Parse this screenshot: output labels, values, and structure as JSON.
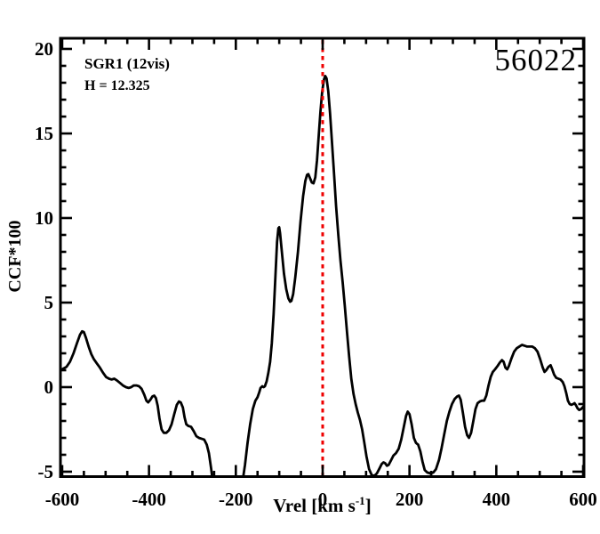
{
  "figure": {
    "annotations": {
      "target": "SGR1 (12vis)",
      "height": "H = 12.325",
      "epoch": "56022"
    },
    "x_axis_title": {
      "prefix": "Vrel [km s",
      "sup": "-1",
      "suffix": "]"
    },
    "y_axis_title": "CCF*100"
  },
  "colors": {
    "background": "#ffffff",
    "curve": "#000000",
    "frame": "#000000",
    "ref_line": "#ee0000"
  },
  "chart_data": {
    "type": "line",
    "title": "",
    "xlabel": "Vrel [km s^-1]",
    "ylabel": "CCF*100",
    "annotations": [
      "SGR1 (12vis)",
      "H = 12.325",
      "56022"
    ],
    "grid": false,
    "legend": "none",
    "xlim": [
      -604,
      602
    ],
    "ylim": [
      -5.29,
      20.63
    ],
    "x_major_ticks": [
      -600,
      -400,
      -200,
      0,
      200,
      400,
      600
    ],
    "x_minor_step": 50,
    "y_major_ticks": [
      -5,
      0,
      5,
      10,
      15,
      20
    ],
    "y_minor_step": 1,
    "ref_line": {
      "x": 0,
      "color": "#ee0000",
      "style": "dotted"
    },
    "series": [
      {
        "name": "CCF",
        "color": "#000000",
        "points": [
          [
            -604,
            1.0
          ],
          [
            -597,
            1.1
          ],
          [
            -590,
            1.2
          ],
          [
            -582,
            1.5
          ],
          [
            -574,
            2.0
          ],
          [
            -566,
            2.6
          ],
          [
            -559,
            3.1
          ],
          [
            -554,
            3.3
          ],
          [
            -550,
            3.25
          ],
          [
            -545,
            2.9
          ],
          [
            -539,
            2.4
          ],
          [
            -533,
            1.95
          ],
          [
            -527,
            1.65
          ],
          [
            -520,
            1.4
          ],
          [
            -513,
            1.15
          ],
          [
            -506,
            0.85
          ],
          [
            -499,
            0.6
          ],
          [
            -492,
            0.5
          ],
          [
            -486,
            0.45
          ],
          [
            -480,
            0.5
          ],
          [
            -474,
            0.4
          ],
          [
            -467,
            0.25
          ],
          [
            -460,
            0.1
          ],
          [
            -453,
            0.0
          ],
          [
            -447,
            -0.05
          ],
          [
            -441,
            0.0
          ],
          [
            -435,
            0.1
          ],
          [
            -429,
            0.1
          ],
          [
            -423,
            0.05
          ],
          [
            -417,
            -0.1
          ],
          [
            -411,
            -0.45
          ],
          [
            -406,
            -0.8
          ],
          [
            -402,
            -0.9
          ],
          [
            -397,
            -0.75
          ],
          [
            -392,
            -0.55
          ],
          [
            -388,
            -0.5
          ],
          [
            -384,
            -0.65
          ],
          [
            -380,
            -1.1
          ],
          [
            -376,
            -1.85
          ],
          [
            -371,
            -2.5
          ],
          [
            -366,
            -2.7
          ],
          [
            -360,
            -2.7
          ],
          [
            -354,
            -2.55
          ],
          [
            -348,
            -2.2
          ],
          [
            -342,
            -1.6
          ],
          [
            -336,
            -1.05
          ],
          [
            -331,
            -0.85
          ],
          [
            -327,
            -0.9
          ],
          [
            -322,
            -1.2
          ],
          [
            -318,
            -1.8
          ],
          [
            -314,
            -2.2
          ],
          [
            -309,
            -2.3
          ],
          [
            -303,
            -2.35
          ],
          [
            -297,
            -2.6
          ],
          [
            -291,
            -2.9
          ],
          [
            -285,
            -3.0
          ],
          [
            -279,
            -3.05
          ],
          [
            -273,
            -3.1
          ],
          [
            -267,
            -3.4
          ],
          [
            -262,
            -3.9
          ],
          [
            -257,
            -4.8
          ],
          [
            -252,
            -5.8
          ],
          [
            -246,
            -6.6
          ],
          [
            -240,
            -7.0
          ],
          [
            -200,
            -7.0
          ],
          [
            -190,
            -6.3
          ],
          [
            -184,
            -5.5
          ],
          [
            -179,
            -4.6
          ],
          [
            -173,
            -3.3
          ],
          [
            -167,
            -2.2
          ],
          [
            -161,
            -1.3
          ],
          [
            -155,
            -0.8
          ],
          [
            -150,
            -0.6
          ],
          [
            -146,
            -0.3
          ],
          [
            -143,
            -0.05
          ],
          [
            -139,
            0.05
          ],
          [
            -136,
            0.0
          ],
          [
            -133,
            0.05
          ],
          [
            -129,
            0.35
          ],
          [
            -125,
            0.85
          ],
          [
            -121,
            1.5
          ],
          [
            -117,
            2.6
          ],
          [
            -113,
            4.3
          ],
          [
            -109,
            6.5
          ],
          [
            -105,
            8.6
          ],
          [
            -102,
            9.4
          ],
          [
            -100,
            9.45
          ],
          [
            -98,
            9.1
          ],
          [
            -94,
            8.0
          ],
          [
            -89,
            6.7
          ],
          [
            -84,
            5.8
          ],
          [
            -79,
            5.25
          ],
          [
            -75,
            5.05
          ],
          [
            -72,
            5.1
          ],
          [
            -68,
            5.5
          ],
          [
            -63,
            6.5
          ],
          [
            -57,
            8.0
          ],
          [
            -51,
            9.8
          ],
          [
            -45,
            11.3
          ],
          [
            -40,
            12.2
          ],
          [
            -36,
            12.55
          ],
          [
            -33,
            12.6
          ],
          [
            -29,
            12.35
          ],
          [
            -25,
            12.1
          ],
          [
            -21,
            12.05
          ],
          [
            -17,
            12.4
          ],
          [
            -13,
            13.4
          ],
          [
            -9,
            14.9
          ],
          [
            -5,
            16.3
          ],
          [
            -1,
            17.5
          ],
          [
            3,
            18.2
          ],
          [
            6,
            18.4
          ],
          [
            9,
            18.25
          ],
          [
            13,
            17.5
          ],
          [
            17,
            16.2
          ],
          [
            21,
            14.7
          ],
          [
            26,
            12.7
          ],
          [
            31,
            10.7
          ],
          [
            36,
            9.0
          ],
          [
            41,
            7.5
          ],
          [
            46,
            6.2
          ],
          [
            51,
            4.8
          ],
          [
            56,
            3.3
          ],
          [
            61,
            1.8
          ],
          [
            66,
            0.5
          ],
          [
            71,
            -0.4
          ],
          [
            76,
            -1.0
          ],
          [
            81,
            -1.5
          ],
          [
            86,
            -1.95
          ],
          [
            91,
            -2.5
          ],
          [
            96,
            -3.3
          ],
          [
            101,
            -4.1
          ],
          [
            107,
            -4.85
          ],
          [
            113,
            -5.2
          ],
          [
            119,
            -5.25
          ],
          [
            125,
            -5.1
          ],
          [
            131,
            -4.8
          ],
          [
            136,
            -4.55
          ],
          [
            140,
            -4.45
          ],
          [
            144,
            -4.5
          ],
          [
            148,
            -4.65
          ],
          [
            152,
            -4.6
          ],
          [
            157,
            -4.35
          ],
          [
            163,
            -4.05
          ],
          [
            169,
            -3.9
          ],
          [
            175,
            -3.65
          ],
          [
            181,
            -3.1
          ],
          [
            187,
            -2.35
          ],
          [
            192,
            -1.7
          ],
          [
            196,
            -1.45
          ],
          [
            200,
            -1.6
          ],
          [
            205,
            -2.2
          ],
          [
            210,
            -3.0
          ],
          [
            215,
            -3.3
          ],
          [
            220,
            -3.4
          ],
          [
            225,
            -3.8
          ],
          [
            230,
            -4.4
          ],
          [
            235,
            -4.9
          ],
          [
            241,
            -5.05
          ],
          [
            248,
            -5.1
          ],
          [
            255,
            -5.05
          ],
          [
            261,
            -4.85
          ],
          [
            268,
            -4.3
          ],
          [
            274,
            -3.6
          ],
          [
            280,
            -2.8
          ],
          [
            286,
            -2.0
          ],
          [
            292,
            -1.45
          ],
          [
            298,
            -1.0
          ],
          [
            304,
            -0.7
          ],
          [
            310,
            -0.55
          ],
          [
            314,
            -0.5
          ],
          [
            318,
            -0.75
          ],
          [
            323,
            -1.5
          ],
          [
            328,
            -2.35
          ],
          [
            333,
            -2.85
          ],
          [
            337,
            -3.0
          ],
          [
            342,
            -2.7
          ],
          [
            347,
            -2.0
          ],
          [
            352,
            -1.3
          ],
          [
            357,
            -0.95
          ],
          [
            362,
            -0.85
          ],
          [
            367,
            -0.8
          ],
          [
            372,
            -0.8
          ],
          [
            377,
            -0.5
          ],
          [
            382,
            0.1
          ],
          [
            387,
            0.6
          ],
          [
            392,
            0.9
          ],
          [
            397,
            1.05
          ],
          [
            403,
            1.25
          ],
          [
            408,
            1.45
          ],
          [
            413,
            1.6
          ],
          [
            417,
            1.5
          ],
          [
            421,
            1.15
          ],
          [
            425,
            1.05
          ],
          [
            429,
            1.25
          ],
          [
            435,
            1.7
          ],
          [
            441,
            2.1
          ],
          [
            447,
            2.3
          ],
          [
            453,
            2.4
          ],
          [
            459,
            2.5
          ],
          [
            465,
            2.45
          ],
          [
            471,
            2.4
          ],
          [
            477,
            2.4
          ],
          [
            483,
            2.4
          ],
          [
            489,
            2.3
          ],
          [
            495,
            2.1
          ],
          [
            501,
            1.65
          ],
          [
            507,
            1.15
          ],
          [
            511,
            0.9
          ],
          [
            515,
            1.0
          ],
          [
            520,
            1.2
          ],
          [
            525,
            1.3
          ],
          [
            529,
            1.05
          ],
          [
            533,
            0.75
          ],
          [
            538,
            0.55
          ],
          [
            543,
            0.5
          ],
          [
            548,
            0.45
          ],
          [
            553,
            0.3
          ],
          [
            557,
            0.05
          ],
          [
            561,
            -0.35
          ],
          [
            565,
            -0.8
          ],
          [
            569,
            -1.0
          ],
          [
            573,
            -1.05
          ],
          [
            577,
            -1.0
          ],
          [
            580,
            -0.95
          ],
          [
            583,
            -1.05
          ],
          [
            587,
            -1.25
          ],
          [
            591,
            -1.35
          ],
          [
            595,
            -1.3
          ],
          [
            599,
            -1.2
          ],
          [
            602,
            -1.1
          ]
        ]
      }
    ]
  }
}
